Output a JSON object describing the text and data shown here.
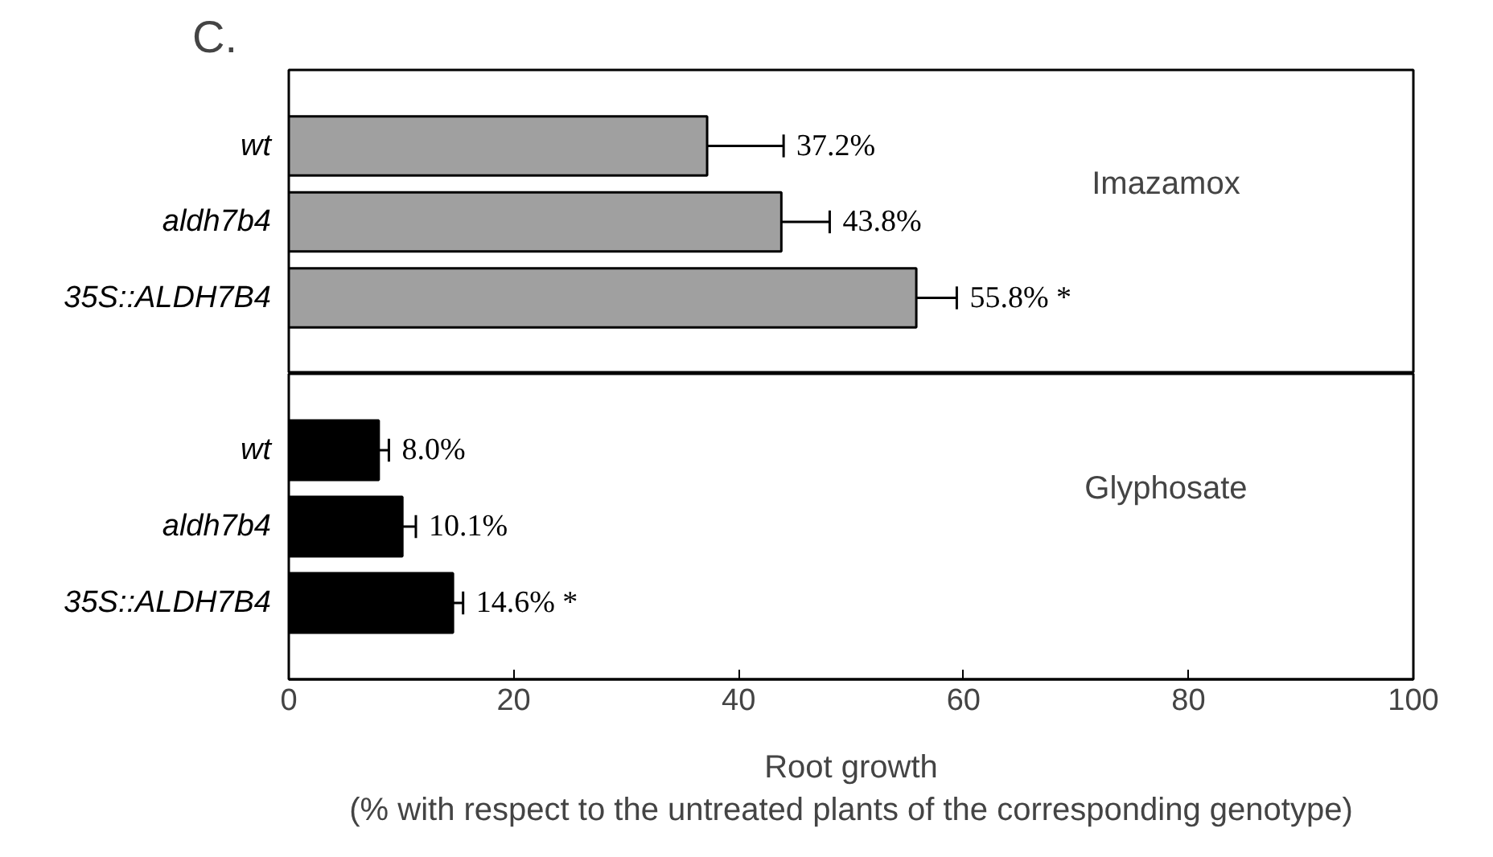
{
  "chart_data": [
    {
      "type": "bar",
      "orientation": "horizontal",
      "title": "C.",
      "categories": [
        "wt",
        "aldh7b4",
        "35S::ALDH7B4"
      ],
      "series": [
        {
          "color": "#a0a0a0",
          "values": [
            37.2,
            43.8,
            55.8
          ],
          "errors": [
            [
              37.2,
              44.0
            ],
            [
              43.8,
              48.1
            ],
            [
              55.8,
              59.4
            ]
          ],
          "value_labels": [
            "37.2%",
            "43.8%",
            "55.8% *"
          ]
        }
      ],
      "xlim": [
        0,
        100
      ],
      "xticks": [
        0,
        20,
        40,
        60,
        80,
        100
      ],
      "tick_labels": "y",
      "grid": false,
      "annotations": [
        "Imazamox"
      ]
    },
    {
      "type": "bar",
      "orientation": "horizontal",
      "categories": [
        "wt",
        "aldh7b4",
        "35S::ALDH7B4"
      ],
      "series": [
        {
          "color": "#000000",
          "values": [
            8.0,
            10.1,
            14.6
          ],
          "errors": [
            [
              8.0,
              8.9
            ],
            [
              10.1,
              11.3
            ],
            [
              14.6,
              15.5
            ]
          ],
          "value_labels": [
            "8.0%",
            "10.1%",
            "14.6% *"
          ]
        }
      ],
      "xlim": [
        0,
        100
      ],
      "xticks": [
        0,
        20,
        40,
        60,
        80,
        100
      ],
      "grid": false,
      "xlabel": "Root growth\n(% with respect to the untreated plants of the corresponding genotype)",
      "annotations": [
        "Glyphosate"
      ]
    }
  ]
}
